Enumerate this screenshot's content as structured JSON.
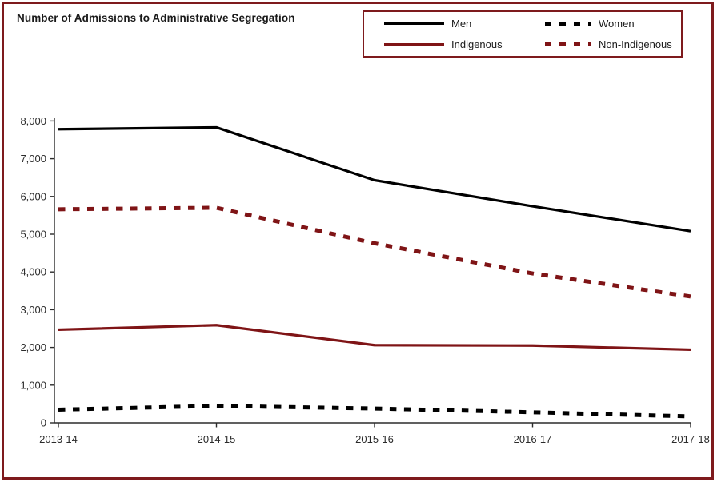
{
  "frame_border_color": "#7e1a1d",
  "chart_data": {
    "type": "line",
    "title": "Number of Admissions to Administrative Segregation",
    "categories": [
      "2013-14",
      "2014-15",
      "2015-16",
      "2016-17",
      "2017-18"
    ],
    "series": [
      {
        "name": "Men",
        "values": [
          7780,
          7830,
          6430,
          5740,
          5080
        ],
        "color": "#000000",
        "style": "solid"
      },
      {
        "name": "Women",
        "values": [
          350,
          450,
          380,
          280,
          170
        ],
        "color": "#000000",
        "style": "dashed"
      },
      {
        "name": "Indigenous",
        "values": [
          2470,
          2590,
          2060,
          2050,
          1940
        ],
        "color": "#7f1416",
        "style": "solid"
      },
      {
        "name": "Non-Indigenous",
        "values": [
          5660,
          5700,
          4760,
          3960,
          3350
        ],
        "color": "#7f1416",
        "style": "dashed"
      }
    ],
    "xlabel": "",
    "ylabel": "",
    "ylim": [
      0,
      8000
    ],
    "ytick_interval": 1000,
    "ytick_labels": [
      "0",
      "1,000",
      "2,000",
      "3,000",
      "4,000",
      "5,000",
      "6,000",
      "7,000",
      "8,000"
    ],
    "grid": false,
    "legend_position": "top-right",
    "axis_color": "#2b2b2b"
  }
}
